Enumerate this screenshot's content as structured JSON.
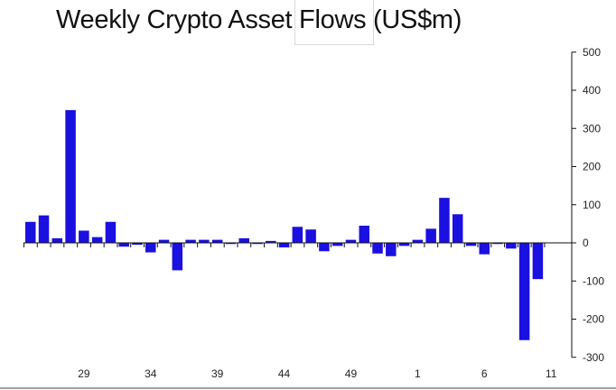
{
  "chart_data": {
    "type": "bar",
    "title": "Weekly Crypto Asset Flows (US$m)",
    "xlabel": "",
    "ylabel": "",
    "ylim": [
      -300,
      500
    ],
    "yticks": [
      500,
      400,
      300,
      200,
      100,
      0,
      -100,
      -200,
      -300
    ],
    "y_axis_position": "right",
    "grid": false,
    "legend": "none",
    "bar_color": "#1a10e0",
    "xtick_labels": [
      {
        "index": 4,
        "label": "29"
      },
      {
        "index": 9,
        "label": "34"
      },
      {
        "index": 14,
        "label": "39"
      },
      {
        "index": 19,
        "label": "44"
      },
      {
        "index": 24,
        "label": "49"
      },
      {
        "index": 29,
        "label": "1"
      },
      {
        "index": 34,
        "label": "6"
      },
      {
        "index": 39,
        "label": "11"
      }
    ],
    "values": [
      55,
      72,
      12,
      348,
      32,
      15,
      55,
      -10,
      -5,
      -25,
      8,
      -72,
      8,
      8,
      8,
      -3,
      12,
      -3,
      5,
      -12,
      42,
      35,
      -22,
      -8,
      8,
      45,
      -28,
      -35,
      -8,
      8,
      37,
      118,
      75,
      -8,
      -30,
      -3,
      -15,
      -255,
      -95
    ]
  }
}
